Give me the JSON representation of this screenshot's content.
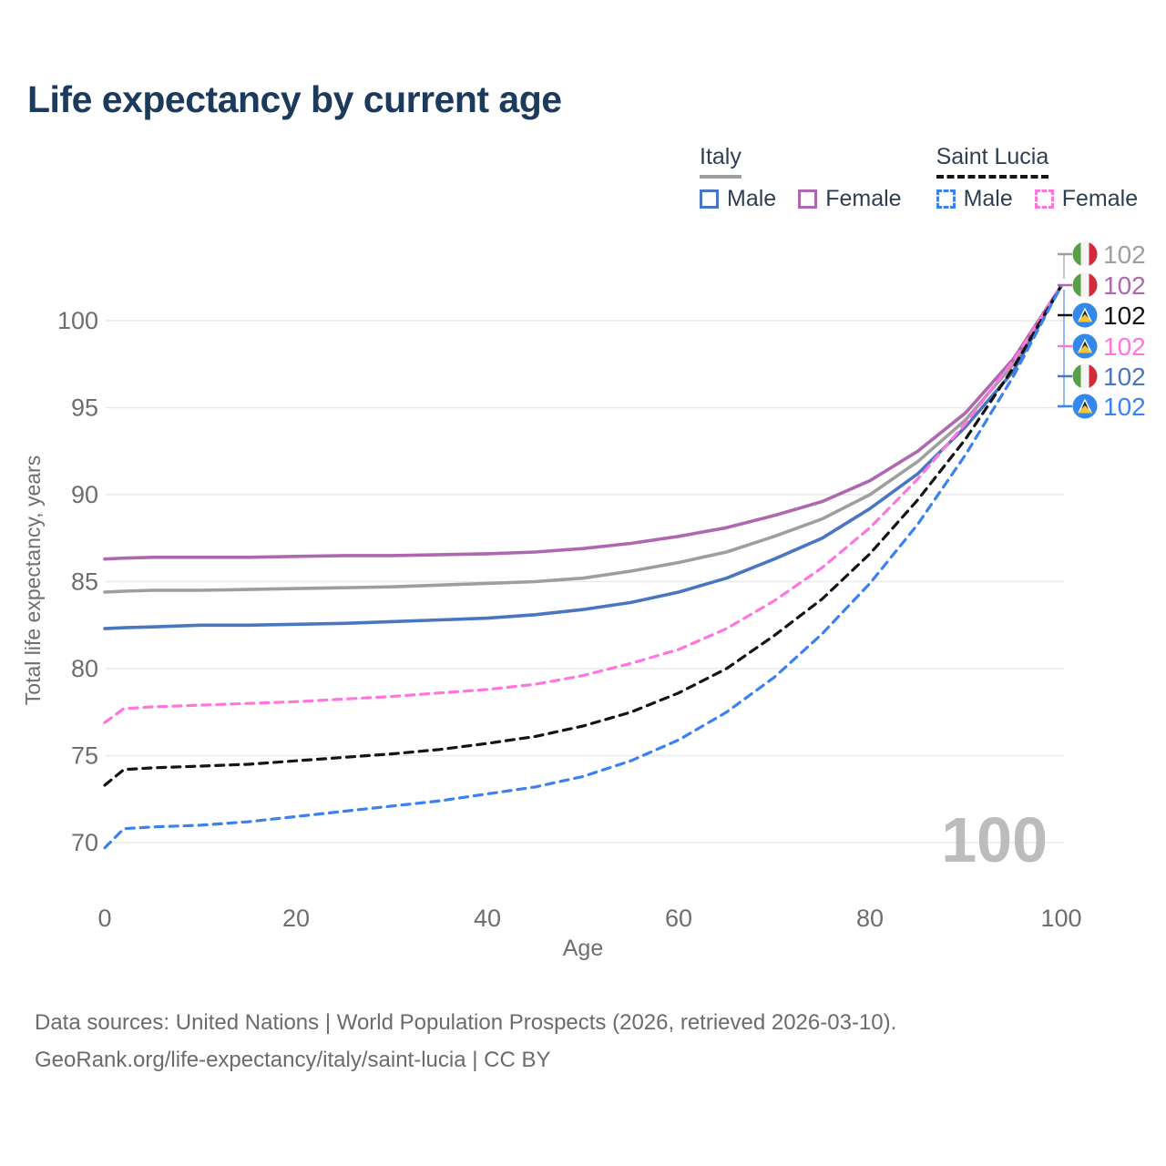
{
  "title": "Life expectancy by current age",
  "legend": {
    "italy": {
      "title": "Italy",
      "male": "Male",
      "female": "Female"
    },
    "saint_lucia": {
      "title": "Saint Lucia",
      "male": "Male",
      "female": "Female"
    }
  },
  "footer": {
    "line1": "Data sources: United Nations | World Population Prospects (2026, retrieved 2026-03-10).",
    "line2": "GeoRank.org/life-expectancy/italy/saint-lucia | CC BY"
  },
  "colors": {
    "italy_all": "#9e9e9e",
    "italy_female": "#ae68b0",
    "italy_male": "#4a76c1",
    "saint_lucia_all": "#141414",
    "saint_lucia_female": "#ff74df",
    "saint_lucia_male": "#3b82f0",
    "title_text": "#1b3a5c",
    "axis_text": "#6e6e6e",
    "grid": "#e9e9e9",
    "watermark": "#bcbcbc",
    "connector_top": "#b5b5b5",
    "connector_bottom": "#7fa8ef"
  },
  "chart_data": {
    "type": "line",
    "title": "Life expectancy by current age",
    "xlabel": "Age",
    "ylabel": "Total life expectancy, years",
    "x_ticks": [
      0,
      20,
      40,
      60,
      80,
      100
    ],
    "y_ticks": [
      70,
      75,
      80,
      85,
      90,
      95,
      100
    ],
    "xlim": [
      0,
      100
    ],
    "ylim": [
      68.5,
      103
    ],
    "grid": "horizontal",
    "legend_position": "top-right",
    "watermark_age_counter": "100",
    "x": [
      0,
      2,
      5,
      10,
      15,
      20,
      25,
      30,
      35,
      40,
      45,
      50,
      55,
      60,
      65,
      70,
      75,
      80,
      85,
      90,
      95,
      100
    ],
    "series": [
      {
        "id": "italy_all",
        "name": "Italy — All",
        "flag": "italy",
        "style": "solid",
        "end_label": "102",
        "values": [
          84.4,
          84.45,
          84.5,
          84.5,
          84.55,
          84.6,
          84.65,
          84.7,
          84.8,
          84.9,
          85.0,
          85.2,
          85.6,
          86.1,
          86.7,
          87.6,
          88.6,
          90.0,
          91.9,
          94.3,
          97.5,
          102
        ]
      },
      {
        "id": "italy_female",
        "name": "Italy — Female",
        "flag": "italy",
        "style": "solid",
        "end_label": "102",
        "values": [
          86.3,
          86.35,
          86.4,
          86.4,
          86.4,
          86.45,
          86.5,
          86.5,
          86.55,
          86.6,
          86.7,
          86.9,
          87.2,
          87.6,
          88.1,
          88.8,
          89.6,
          90.8,
          92.5,
          94.7,
          97.8,
          102
        ]
      },
      {
        "id": "italy_male",
        "name": "Italy — Male",
        "flag": "italy",
        "style": "solid",
        "end_label": "102",
        "values": [
          82.3,
          82.35,
          82.4,
          82.5,
          82.5,
          82.55,
          82.6,
          82.7,
          82.8,
          82.9,
          83.1,
          83.4,
          83.8,
          84.4,
          85.2,
          86.3,
          87.5,
          89.2,
          91.2,
          93.9,
          97.1,
          102
        ]
      },
      {
        "id": "saint_lucia_all",
        "name": "Saint Lucia — All",
        "flag": "saint-lucia",
        "style": "dashed",
        "end_label": "102",
        "values": [
          73.3,
          74.2,
          74.3,
          74.4,
          74.5,
          74.7,
          74.9,
          75.1,
          75.35,
          75.7,
          76.1,
          76.7,
          77.5,
          78.6,
          80.0,
          81.9,
          84.0,
          86.6,
          89.7,
          93.2,
          97.3,
          102
        ]
      },
      {
        "id": "saint_lucia_female",
        "name": "Saint Lucia — Female",
        "flag": "saint-lucia",
        "style": "dashed",
        "end_label": "102",
        "values": [
          76.9,
          77.7,
          77.8,
          77.9,
          78.0,
          78.1,
          78.25,
          78.4,
          78.6,
          78.8,
          79.1,
          79.6,
          80.3,
          81.1,
          82.3,
          83.9,
          85.8,
          88.1,
          90.9,
          94.1,
          97.7,
          102
        ]
      },
      {
        "id": "saint_lucia_male",
        "name": "Saint Lucia — Male",
        "flag": "saint-lucia",
        "style": "dashed",
        "end_label": "102",
        "values": [
          69.7,
          70.8,
          70.9,
          71.0,
          71.2,
          71.5,
          71.8,
          72.1,
          72.4,
          72.8,
          73.2,
          73.8,
          74.7,
          75.9,
          77.5,
          79.5,
          82.0,
          84.9,
          88.3,
          92.3,
          96.8,
          102
        ]
      }
    ]
  }
}
